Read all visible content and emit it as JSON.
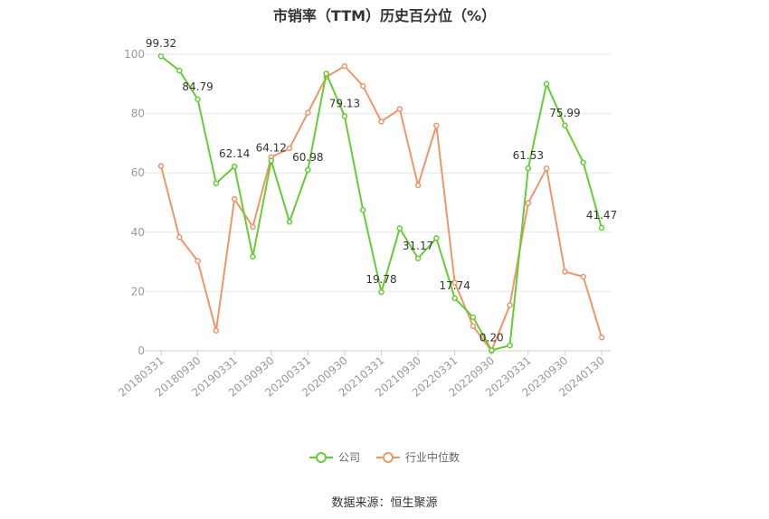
{
  "chart_data": {
    "type": "line",
    "title": "市销率（TTM）历史百分位（%）",
    "ylim": [
      0,
      100
    ],
    "yticks": [
      0,
      20,
      40,
      60,
      80,
      100
    ],
    "x_tick_labels": [
      "20180331",
      "20180930",
      "20190331",
      "20190930",
      "20200331",
      "20200930",
      "20210331",
      "20210930",
      "20220331",
      "20220930",
      "20230331",
      "20230930",
      "20240130"
    ],
    "x": [
      "20180331",
      "20180630",
      "20180930",
      "20181231",
      "20190331",
      "20190630",
      "20190930",
      "20191231",
      "20200331",
      "20200630",
      "20200930",
      "20201231",
      "20210331",
      "20210630",
      "20210930",
      "20211231",
      "20220331",
      "20220630",
      "20220930",
      "20221231",
      "20230331",
      "20230630",
      "20230930",
      "20231231",
      "20240130"
    ],
    "series": [
      {
        "name": "公司",
        "color": "#66cc33",
        "values": [
          99.32,
          94.5,
          84.79,
          56.5,
          62.14,
          31.8,
          64.12,
          43.5,
          60.98,
          93.5,
          79.13,
          47.5,
          19.78,
          41.3,
          31.17,
          38.0,
          17.74,
          11.3,
          0.2,
          1.8,
          61.53,
          90.0,
          75.99,
          63.5,
          41.47
        ],
        "labeled_points": [
          {
            "index": 0,
            "text": "99.32"
          },
          {
            "index": 2,
            "text": "84.79"
          },
          {
            "index": 4,
            "text": "62.14"
          },
          {
            "index": 6,
            "text": "64.12"
          },
          {
            "index": 8,
            "text": "60.98"
          },
          {
            "index": 10,
            "text": "79.13"
          },
          {
            "index": 12,
            "text": "19.78"
          },
          {
            "index": 14,
            "text": "31.17"
          },
          {
            "index": 16,
            "text": "17.74"
          },
          {
            "index": 18,
            "text": "0.20"
          },
          {
            "index": 20,
            "text": "61.53"
          },
          {
            "index": 22,
            "text": "75.99"
          },
          {
            "index": 24,
            "text": "41.47"
          }
        ]
      },
      {
        "name": "行业中位数",
        "color": "#f0956a",
        "values": [
          62.3,
          38.3,
          30.3,
          6.8,
          51.2,
          41.8,
          65.3,
          68.3,
          80.3,
          92.3,
          96.0,
          89.3,
          77.3,
          81.5,
          55.8,
          76.0,
          23.0,
          8.3,
          0.0,
          15.4,
          49.8,
          61.5,
          26.7,
          25.0,
          4.5
        ]
      }
    ],
    "grid": true,
    "legend_position": "bottom-center"
  },
  "legend": {
    "company": "公司",
    "industry": "行业中位数"
  },
  "source": "数据来源：恒生聚源",
  "colors": {
    "company": "#66cc33",
    "industry": "#f0956a",
    "grid": "#e6e6e6",
    "axis": "#999999"
  }
}
